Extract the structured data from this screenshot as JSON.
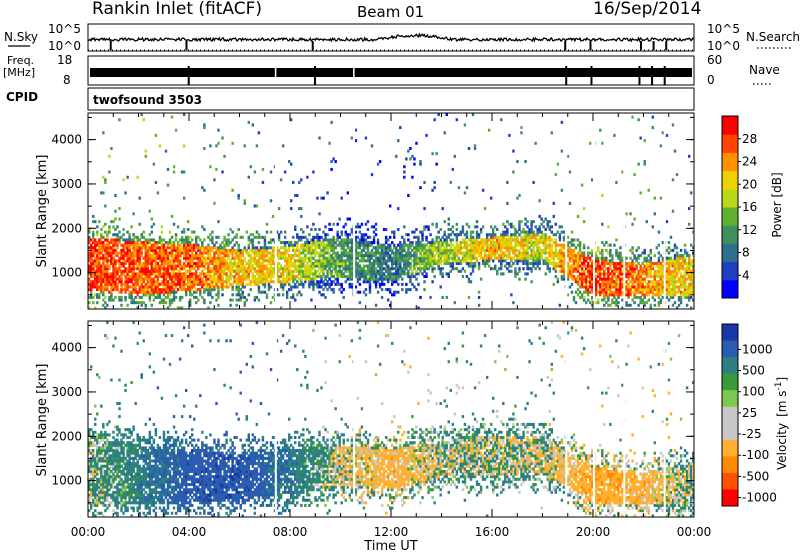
{
  "header": {
    "station": "Rankin Inlet (fitACF)",
    "beam": "Beam 01",
    "date": "16/Sep/2014"
  },
  "strip_panels": {
    "noise": {
      "left_label": "N.Sky",
      "right_label": "N.Search",
      "left_ticks": [
        "10^5",
        "10^0"
      ],
      "right_ticks": [
        "10^5",
        "10^0"
      ]
    },
    "freq": {
      "left_label": "Freq.",
      "left_unit": "[MHz]",
      "right_label": "Nave",
      "left_ticks": [
        "18",
        "8"
      ],
      "right_ticks": [
        "60",
        "0"
      ]
    },
    "cpid": {
      "label": "CPID",
      "value": "twofsound 3503"
    }
  },
  "colors": {
    "power_scale": [
      "#0000ff",
      "#1f3fbf",
      "#2e6e8e",
      "#3f8f5f",
      "#5fb030",
      "#b8d818",
      "#f0d000",
      "#ff9000",
      "#ff4400",
      "#ff0000"
    ],
    "velocity_scale": [
      "#ff0000",
      "#ff5000",
      "#ff8a00",
      "#ffb030",
      "#c8c8c8",
      "#c8c8c8",
      "#7ec850",
      "#3a9a3a",
      "#2c8080",
      "#2a5db0",
      "#1838a8"
    ]
  },
  "chart_data": [
    {
      "type": "heatmap",
      "title": "",
      "xlabel": "Time UT",
      "ylabel": "Slant Range [km]",
      "x_ticks": [
        "00:00",
        "04:00",
        "08:00",
        "12:00",
        "16:00",
        "20:00",
        "00:00"
      ],
      "xlim_hours": [
        0,
        24
      ],
      "y_ticks": [
        1000,
        2000,
        3000,
        4000
      ],
      "ylim": [
        180,
        4600
      ],
      "colorbar": {
        "label": "Power [dB]",
        "ticks": [
          4,
          8,
          12,
          16,
          20,
          24,
          28
        ],
        "range": [
          0,
          32
        ]
      },
      "profile": [
        {
          "t": 0.0,
          "core_lo": 600,
          "core_hi": 1800,
          "value": 28
        },
        {
          "t": 2.0,
          "core_lo": 500,
          "core_hi": 1700,
          "value": 27
        },
        {
          "t": 4.0,
          "core_lo": 600,
          "core_hi": 1650,
          "value": 26
        },
        {
          "t": 6.0,
          "core_lo": 700,
          "core_hi": 1500,
          "value": 22
        },
        {
          "t": 8.0,
          "core_lo": 800,
          "core_hi": 1600,
          "value": 20
        },
        {
          "t": 10.0,
          "core_lo": 900,
          "core_hi": 1800,
          "value": 12
        },
        {
          "t": 12.0,
          "core_lo": 800,
          "core_hi": 1600,
          "value": 9
        },
        {
          "t": 14.0,
          "core_lo": 1200,
          "core_hi": 1700,
          "value": 17
        },
        {
          "t": 16.0,
          "core_lo": 1300,
          "core_hi": 1800,
          "value": 22
        },
        {
          "t": 18.0,
          "core_lo": 1300,
          "core_hi": 1900,
          "value": 18
        },
        {
          "t": 20.0,
          "core_lo": 500,
          "core_hi": 1300,
          "value": 29
        },
        {
          "t": 22.0,
          "core_lo": 500,
          "core_hi": 1200,
          "value": 24
        },
        {
          "t": 24.0,
          "core_lo": 500,
          "core_hi": 1400,
          "value": 20
        }
      ]
    },
    {
      "type": "heatmap",
      "title": "",
      "xlabel": "Time UT",
      "ylabel": "Slant Range [km]",
      "x_ticks": [
        "00:00",
        "04:00",
        "08:00",
        "12:00",
        "16:00",
        "20:00",
        "00:00"
      ],
      "xlim_hours": [
        0,
        24
      ],
      "y_ticks": [
        1000,
        2000,
        3000,
        4000
      ],
      "ylim": [
        180,
        4600
      ],
      "colorbar": {
        "label": "Velocity [m s^-1]",
        "label_main": "Velocity",
        "label_unit": "[m s",
        "label_exp": "-1",
        "label_close": "]",
        "ticks": [
          "1000",
          "500",
          "100",
          "25",
          "-25",
          "-100",
          "-500",
          "-1000"
        ]
      },
      "profile": [
        {
          "t": 0.0,
          "core_lo": 500,
          "core_hi": 2000,
          "value": 50
        },
        {
          "t": 2.0,
          "core_lo": 500,
          "core_hi": 1800,
          "value": 300
        },
        {
          "t": 4.0,
          "core_lo": 500,
          "core_hi": 1700,
          "value": 800
        },
        {
          "t": 6.0,
          "core_lo": 600,
          "core_hi": 1600,
          "value": 900
        },
        {
          "t": 8.0,
          "core_lo": 700,
          "core_hi": 1700,
          "value": 400
        },
        {
          "t": 10.0,
          "core_lo": 900,
          "core_hi": 1800,
          "value": -50
        },
        {
          "t": 12.0,
          "core_lo": 800,
          "core_hi": 1700,
          "value": -300
        },
        {
          "t": 14.0,
          "core_lo": 1100,
          "core_hi": 1900,
          "value": 0
        },
        {
          "t": 16.0,
          "core_lo": 1100,
          "core_hi": 2000,
          "value": 0
        },
        {
          "t": 18.0,
          "core_lo": 1200,
          "core_hi": 2000,
          "value": -20
        },
        {
          "t": 20.0,
          "core_lo": 500,
          "core_hi": 1300,
          "value": -400
        },
        {
          "t": 22.0,
          "core_lo": 500,
          "core_hi": 1200,
          "value": -300
        },
        {
          "t": 24.0,
          "core_lo": 500,
          "core_hi": 1400,
          "value": 50
        }
      ]
    }
  ]
}
